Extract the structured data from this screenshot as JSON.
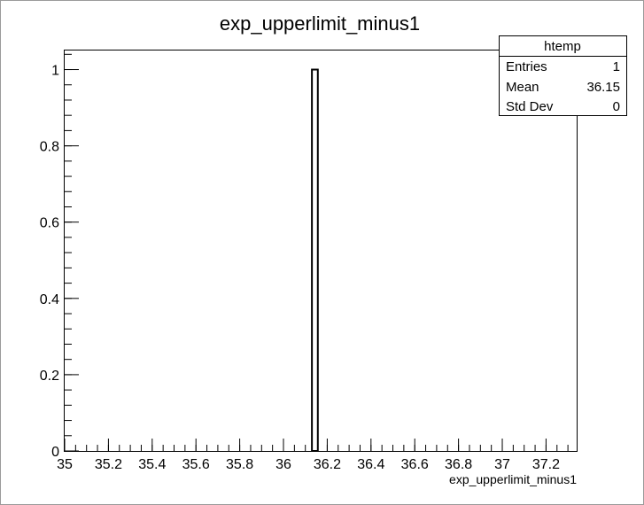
{
  "chart_data": {
    "type": "bar",
    "title": "exp_upperlimit_minus1",
    "xlabel": "exp_upperlimit_minus1",
    "ylabel": "",
    "xlim": [
      35,
      37.34
    ],
    "ylim": [
      0,
      1.05
    ],
    "x_ticks": [
      35,
      35.2,
      35.4,
      35.6,
      35.8,
      36,
      36.2,
      36.4,
      36.6,
      36.8,
      37,
      37.2
    ],
    "x_tick_labels": [
      "35",
      "35.2",
      "35.4",
      "35.6",
      "35.8",
      "36",
      "36.2",
      "36.4",
      "36.6",
      "36.8",
      "37",
      "37.2"
    ],
    "y_ticks": [
      0,
      0.2,
      0.4,
      0.6,
      0.8,
      1
    ],
    "y_tick_labels": [
      "0",
      "0.2",
      "0.4",
      "0.6",
      "0.8",
      "1"
    ],
    "bins": [
      {
        "x_low": 36.13,
        "x_high": 36.157,
        "value": 1
      }
    ],
    "grid": false,
    "legend": "none",
    "stats_box": {
      "placement": "top-right",
      "name": "htemp",
      "rows": [
        {
          "label": "Entries",
          "value": "1"
        },
        {
          "label": "Mean",
          "value": "36.15"
        },
        {
          "label": "Std Dev",
          "value": "0"
        }
      ]
    },
    "colors": {
      "line": "#000000",
      "fill": "#ffffff",
      "frame": "#000000"
    }
  }
}
